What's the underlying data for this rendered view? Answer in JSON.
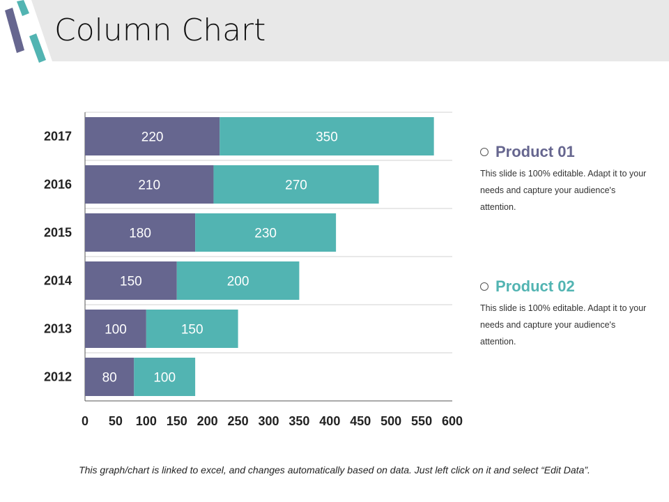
{
  "title": "Column Chart",
  "chart_data": {
    "type": "bar",
    "orientation": "horizontal",
    "stacked": true,
    "categories": [
      "2017",
      "2016",
      "2015",
      "2014",
      "2013",
      "2012"
    ],
    "series": [
      {
        "values": [
          220,
          210,
          180,
          150,
          100,
          80
        ],
        "color": "#66668f"
      },
      {
        "values": [
          350,
          270,
          230,
          200,
          150,
          100
        ],
        "color": "#52b4b2"
      }
    ],
    "xlim": [
      0,
      600
    ],
    "xticks": [
      "0",
      "50",
      "100",
      "150",
      "200",
      "250",
      "300",
      "350",
      "400",
      "450",
      "500",
      "550",
      "600"
    ],
    "grid": true
  },
  "legend": [
    {
      "label": "Product 01",
      "color": "#66668f",
      "text": "This slide is 100% editable. Adapt it to your needs and capture your audience's attention."
    },
    {
      "label": "Product 02",
      "color": "#52b4b2",
      "text": "This slide is 100% editable. Adapt it to your needs and capture your audience's attention."
    }
  ],
  "footer": "This graph/chart is linked to excel, and changes automatically based on data. Just left click on it and select “Edit Data”."
}
